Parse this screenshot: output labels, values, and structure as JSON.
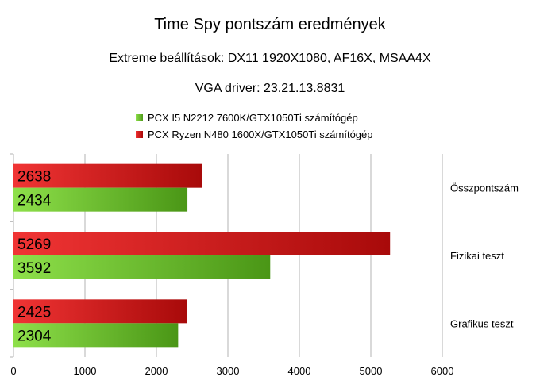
{
  "title": "Time Spy pontszám eredmények",
  "subtitle1": "Extreme beállítások: DX11 1920X1080, AF16X, MSAA4X",
  "subtitle2": "VGA driver: 23.21.13.8831",
  "legend": [
    {
      "label": "PCX I5 N2212 7600K/GTX1050Ti számítógép",
      "color": "#66bb33"
    },
    {
      "label": "PCX Ryzen N480 1600X/GTX1050Ti számítógép",
      "color": "#dd1111"
    }
  ],
  "chart_data": {
    "type": "bar",
    "orientation": "horizontal",
    "categories": [
      "Összpontszám",
      "Fizikai teszt",
      "Grafikus teszt"
    ],
    "series": [
      {
        "name": "PCX Ryzen N480 1600X/GTX1050Ti számítógép",
        "values": [
          2638,
          5269,
          2425
        ],
        "color": "#dd1111"
      },
      {
        "name": "PCX I5 N2212 7600K/GTX1050Ti számítógép",
        "values": [
          2434,
          3592,
          2304
        ],
        "color": "#66bb33"
      }
    ],
    "xlim": [
      0,
      6000
    ],
    "xticks": [
      "0",
      "1000",
      "2000",
      "3000",
      "4000",
      "5000",
      "6000"
    ],
    "grid": true,
    "legend_position": "top"
  }
}
